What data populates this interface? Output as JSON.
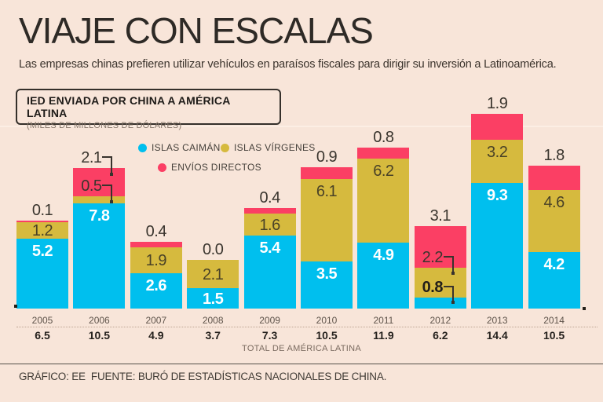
{
  "page": {
    "title": "VIAJE CON ESCALAS",
    "subtitle": "Las empresas chinas prefieren utilizar vehículos en paraísos fiscales para dirigir su inversión a Latinoamérica.",
    "footer": "GRÁFICO: EE  FUENTE: BURÓ DE ESTADÍSTICAS NACIONALES DE CHINA.",
    "background_color": "#f8e5d9"
  },
  "chart_data": {
    "type": "bar",
    "stacked": true,
    "title": "IED ENVIADA POR CHINA A AMÉRICA LATINA",
    "units_label": "(MILES DE MILLONES DE DÓLARES)",
    "categories": [
      "2005",
      "2006",
      "2007",
      "2008",
      "2009",
      "2010",
      "2011",
      "2012",
      "2013",
      "2014"
    ],
    "series": [
      {
        "name": "ISLAS CAIMÁN",
        "color": "#00bfee",
        "values": [
          5.2,
          7.8,
          2.6,
          1.5,
          5.4,
          3.5,
          4.9,
          0.8,
          9.3,
          4.2
        ]
      },
      {
        "name": "ISLAS VÍRGENES",
        "color": "#d6ba3e",
        "values": [
          1.2,
          0.5,
          1.9,
          2.1,
          1.6,
          6.1,
          6.2,
          2.2,
          3.2,
          4.6
        ]
      },
      {
        "name": "ENVÍOS DIRECTOS",
        "color": "#fb3f64",
        "values": [
          0.1,
          2.1,
          0.4,
          0.0,
          0.4,
          0.9,
          0.8,
          3.1,
          1.9,
          1.8
        ]
      }
    ],
    "totals": [
      6.5,
      10.5,
      4.9,
      3.7,
      7.3,
      10.5,
      11.9,
      6.2,
      14.4,
      10.5
    ],
    "totals_label": "TOTAL DE AMÉRICA LATINA",
    "ylim": [
      0,
      14.4
    ],
    "grid": false,
    "legend_position": "top",
    "value_labels": true,
    "callouts": [
      {
        "category_index": 1,
        "series_index": 1
      },
      {
        "category_index": 1,
        "series_index": 2
      },
      {
        "category_index": 7,
        "series_index": 0
      },
      {
        "category_index": 7,
        "series_index": 1
      }
    ]
  }
}
